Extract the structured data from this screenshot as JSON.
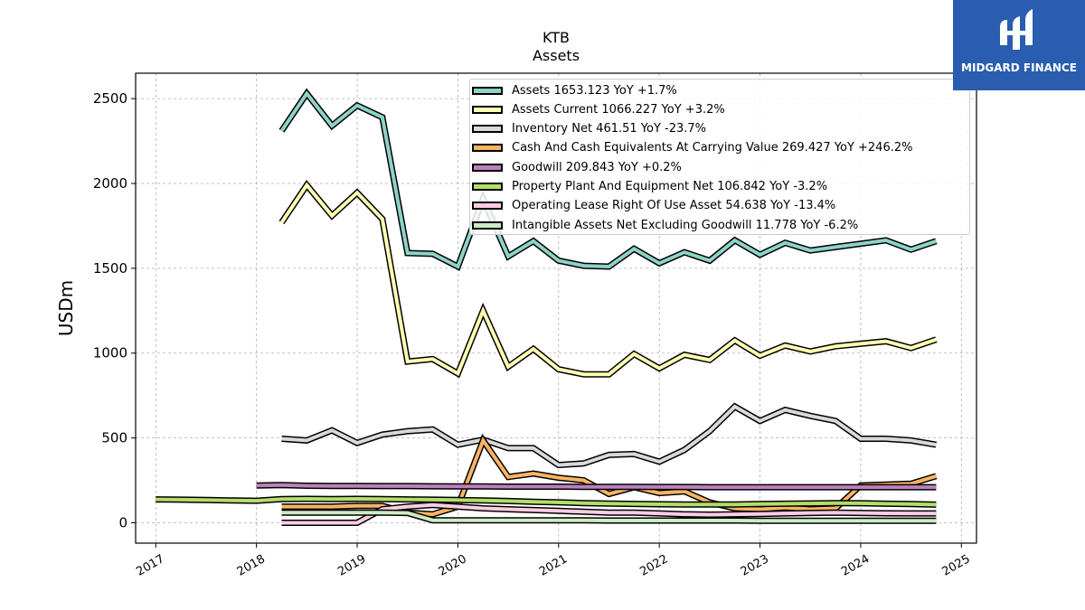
{
  "brand": {
    "name": "MIDGARD FINANCE",
    "color": "#2a5db0"
  },
  "chart_data": {
    "type": "line",
    "title": "KTB",
    "subtitle": "Assets",
    "ylabel": "USDm",
    "xlabel": "",
    "xlim": [
      2016.8,
      2025.15
    ],
    "ylim": [
      -120,
      2650
    ],
    "x_ticks": [
      "2017",
      "2018",
      "2019",
      "2020",
      "2021",
      "2022",
      "2023",
      "2024",
      "2025"
    ],
    "y_ticks": [
      "0",
      "500",
      "1000",
      "1500",
      "2000",
      "2500"
    ],
    "grid": true,
    "legend_position": "top-right",
    "series": [
      {
        "name": "Assets",
        "legend": "Assets  1653.123 YoY +1.7%",
        "color": "#8dd3c7",
        "x": [
          2018.25,
          2018.5,
          2018.75,
          2019.0,
          2019.25,
          2019.5,
          2019.75,
          2020.0,
          2020.25,
          2020.5,
          2020.75,
          2021.0,
          2021.25,
          2021.5,
          2021.75,
          2022.0,
          2022.25,
          2022.5,
          2022.75,
          2023.0,
          2023.25,
          2023.5,
          2023.75,
          2024.0,
          2024.25,
          2024.5,
          2024.75
        ],
        "y": [
          2310,
          2530,
          2340,
          2460,
          2390,
          1590,
          1585,
          1510,
          1910,
          1570,
          1660,
          1545,
          1515,
          1510,
          1615,
          1530,
          1595,
          1545,
          1665,
          1580,
          1650,
          1605,
          1625,
          1645,
          1665,
          1610,
          1660
        ]
      },
      {
        "name": "Assets Current",
        "legend": "Assets Current  1066.227 YoY +3.2%",
        "color": "#ffffb3",
        "x": [
          2018.25,
          2018.5,
          2018.75,
          2019.0,
          2019.25,
          2019.5,
          2019.75,
          2020.0,
          2020.25,
          2020.5,
          2020.75,
          2021.0,
          2021.25,
          2021.5,
          2021.75,
          2022.0,
          2022.25,
          2022.5,
          2022.75,
          2023.0,
          2023.25,
          2023.5,
          2023.75,
          2024.0,
          2024.25,
          2024.5,
          2024.75
        ],
        "y": [
          1770,
          1990,
          1810,
          1945,
          1790,
          950,
          965,
          880,
          1250,
          920,
          1025,
          905,
          875,
          875,
          995,
          910,
          990,
          960,
          1075,
          985,
          1045,
          1010,
          1040,
          1055,
          1070,
          1030,
          1080
        ]
      },
      {
        "name": "Inventory Net",
        "legend": "Inventory Net  461.51 YoY -23.7%",
        "color": "#d9d9d9",
        "x": [
          2018.25,
          2018.5,
          2018.75,
          2019.0,
          2019.25,
          2019.5,
          2019.75,
          2020.0,
          2020.25,
          2020.5,
          2020.75,
          2021.0,
          2021.25,
          2021.5,
          2021.75,
          2022.0,
          2022.25,
          2022.5,
          2022.75,
          2023.0,
          2023.25,
          2023.5,
          2023.75,
          2024.0,
          2024.25,
          2024.5,
          2024.75
        ],
        "y": [
          495,
          485,
          545,
          470,
          520,
          540,
          550,
          460,
          490,
          440,
          440,
          340,
          350,
          400,
          405,
          360,
          430,
          540,
          685,
          600,
          665,
          630,
          600,
          495,
          495,
          485,
          460
        ]
      },
      {
        "name": "Cash And Cash Equivalents At Carrying Value",
        "legend": "Cash And Cash Equivalents At Carrying Value  269.427 YoY +246.2%",
        "color": "#fdb462",
        "x": [
          2018.25,
          2018.5,
          2018.75,
          2019.0,
          2019.25,
          2019.5,
          2019.75,
          2020.0,
          2020.25,
          2020.5,
          2020.75,
          2021.0,
          2021.25,
          2021.5,
          2021.75,
          2022.0,
          2022.25,
          2022.5,
          2022.75,
          2023.0,
          2023.25,
          2023.5,
          2023.75,
          2024.0,
          2024.25,
          2024.5,
          2024.75
        ],
        "y": [
          95,
          95,
          95,
          100,
          100,
          60,
          50,
          95,
          485,
          270,
          290,
          265,
          250,
          170,
          210,
          175,
          185,
          120,
          85,
          80,
          90,
          80,
          85,
          220,
          225,
          230,
          275
        ]
      },
      {
        "name": "Goodwill",
        "legend": "Goodwill  209.843 YoY +0.2%",
        "color": "#bc80bd",
        "x": [
          2018.0,
          2018.25,
          2018.5,
          2018.75,
          2019.0,
          2019.25,
          2019.5,
          2019.75,
          2020.0,
          2020.25,
          2020.5,
          2020.75,
          2021.0,
          2021.25,
          2021.5,
          2021.75,
          2022.0,
          2022.25,
          2022.5,
          2022.75,
          2023.0,
          2023.25,
          2023.5,
          2023.75,
          2024.0,
          2024.25,
          2024.5,
          2024.75
        ],
        "y": [
          220,
          222,
          218,
          217,
          217,
          216,
          216,
          215,
          214,
          214,
          213,
          213,
          213,
          212,
          212,
          212,
          211,
          211,
          210,
          210,
          210,
          210,
          210,
          210,
          210,
          210,
          210,
          210
        ]
      },
      {
        "name": "Property Plant And Equipment Net",
        "legend": "Property Plant And Equipment Net  106.842 YoY -3.2%",
        "color": "#b3de69",
        "x": [
          2017.0,
          2017.25,
          2017.5,
          2017.75,
          2018.0,
          2018.25,
          2018.5,
          2018.75,
          2019.0,
          2019.25,
          2019.5,
          2019.75,
          2020.0,
          2020.25,
          2020.5,
          2020.75,
          2021.0,
          2021.25,
          2021.5,
          2021.75,
          2022.0,
          2022.25,
          2022.5,
          2022.75,
          2023.0,
          2023.25,
          2023.5,
          2023.75,
          2024.0,
          2024.25,
          2024.5,
          2024.75
        ],
        "y": [
          138,
          136,
          134,
          132,
          130,
          140,
          141,
          140,
          141,
          140,
          138,
          136,
          134,
          132,
          128,
          124,
          120,
          116,
          113,
          111,
          109,
          108,
          108,
          108,
          110,
          112,
          114,
          116,
          115,
          112,
          110,
          107
        ]
      },
      {
        "name": "Operating Lease Right Of Use Asset",
        "legend": "Operating Lease Right Of Use Asset  54.638 YoY -13.4%",
        "color": "#fccde5",
        "x": [
          2018.25,
          2018.5,
          2018.75,
          2019.0,
          2019.25,
          2019.5,
          2019.75,
          2020.0,
          2020.25,
          2020.5,
          2020.75,
          2021.0,
          2021.25,
          2021.5,
          2021.75,
          2022.0,
          2022.25,
          2022.5,
          2022.75,
          2023.0,
          2023.25,
          2023.5,
          2023.75,
          2024.0,
          2024.25,
          2024.5,
          2024.75
        ],
        "y": [
          0,
          0,
          0,
          0,
          80,
          95,
          105,
          95,
          85,
          80,
          75,
          70,
          65,
          60,
          60,
          55,
          50,
          48,
          50,
          52,
          55,
          58,
          60,
          58,
          56,
          55,
          55
        ]
      },
      {
        "name": "Intangible Assets Net Excluding Goodwill",
        "legend": "Intangible Assets Net Excluding Goodwill  11.778 YoY -6.2%",
        "color": "#ccebc5",
        "x": [
          2018.25,
          2018.5,
          2018.75,
          2019.0,
          2019.25,
          2019.5,
          2019.75,
          2020.0,
          2020.25,
          2020.5,
          2020.75,
          2021.0,
          2021.25,
          2021.5,
          2021.75,
          2022.0,
          2022.25,
          2022.5,
          2022.75,
          2023.0,
          2023.25,
          2023.5,
          2023.75,
          2024.0,
          2024.25,
          2024.5,
          2024.75
        ],
        "y": [
          60,
          60,
          60,
          60,
          60,
          58,
          15,
          15,
          15,
          14,
          14,
          14,
          14,
          13,
          13,
          13,
          13,
          13,
          13,
          12,
          12,
          12,
          12,
          12,
          12,
          12,
          12
        ]
      }
    ]
  }
}
